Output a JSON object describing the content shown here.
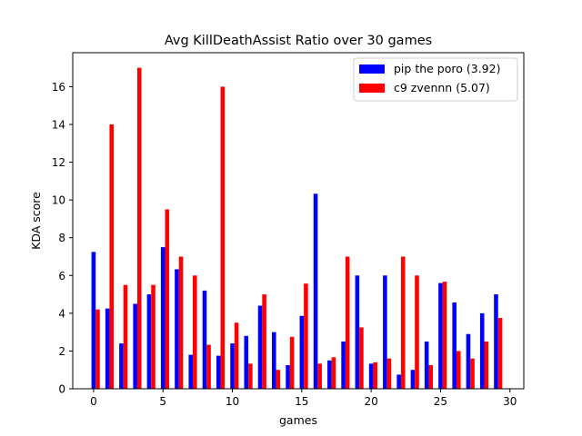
{
  "chart_data": {
    "type": "bar",
    "title": "Avg KillDeathAssist Ratio over 30 games",
    "xlabel": "games",
    "ylabel": "KDA score",
    "xlim": [
      -1.5,
      31
    ],
    "ylim": [
      0,
      17.8
    ],
    "xticks": [
      0,
      5,
      10,
      15,
      20,
      25,
      30
    ],
    "yticks": [
      0,
      2,
      4,
      6,
      8,
      10,
      12,
      14,
      16
    ],
    "grid": false,
    "legend_position": "top-right",
    "x": [
      0,
      1,
      2,
      3,
      4,
      5,
      6,
      7,
      8,
      9,
      10,
      11,
      12,
      13,
      14,
      15,
      16,
      17,
      18,
      19,
      20,
      21,
      22,
      23,
      24,
      25,
      26,
      27,
      28,
      29
    ],
    "series": [
      {
        "name": "pip the poro (3.92)",
        "color": "#0000ff",
        "values": [
          7.25,
          4.25,
          2.4,
          4.5,
          5.0,
          7.5,
          6.33,
          1.8,
          5.2,
          1.75,
          2.4,
          2.8,
          4.4,
          3.0,
          1.25,
          3.86,
          10.33,
          1.5,
          2.5,
          6.0,
          1.33,
          6.0,
          0.75,
          1.0,
          2.5,
          5.6,
          4.57,
          2.9,
          4.0,
          5.0
        ]
      },
      {
        "name": "c9 zvennn (5.07)",
        "color": "#ff0000",
        "values": [
          4.2,
          14.0,
          5.5,
          17.0,
          5.5,
          9.5,
          7.0,
          6.0,
          2.33,
          16.0,
          3.5,
          1.33,
          5.0,
          1.0,
          2.75,
          5.57,
          1.33,
          1.67,
          7.0,
          3.25,
          1.4,
          1.6,
          7.0,
          6.0,
          1.25,
          5.67,
          2.0,
          1.6,
          2.5,
          3.75
        ]
      }
    ]
  }
}
